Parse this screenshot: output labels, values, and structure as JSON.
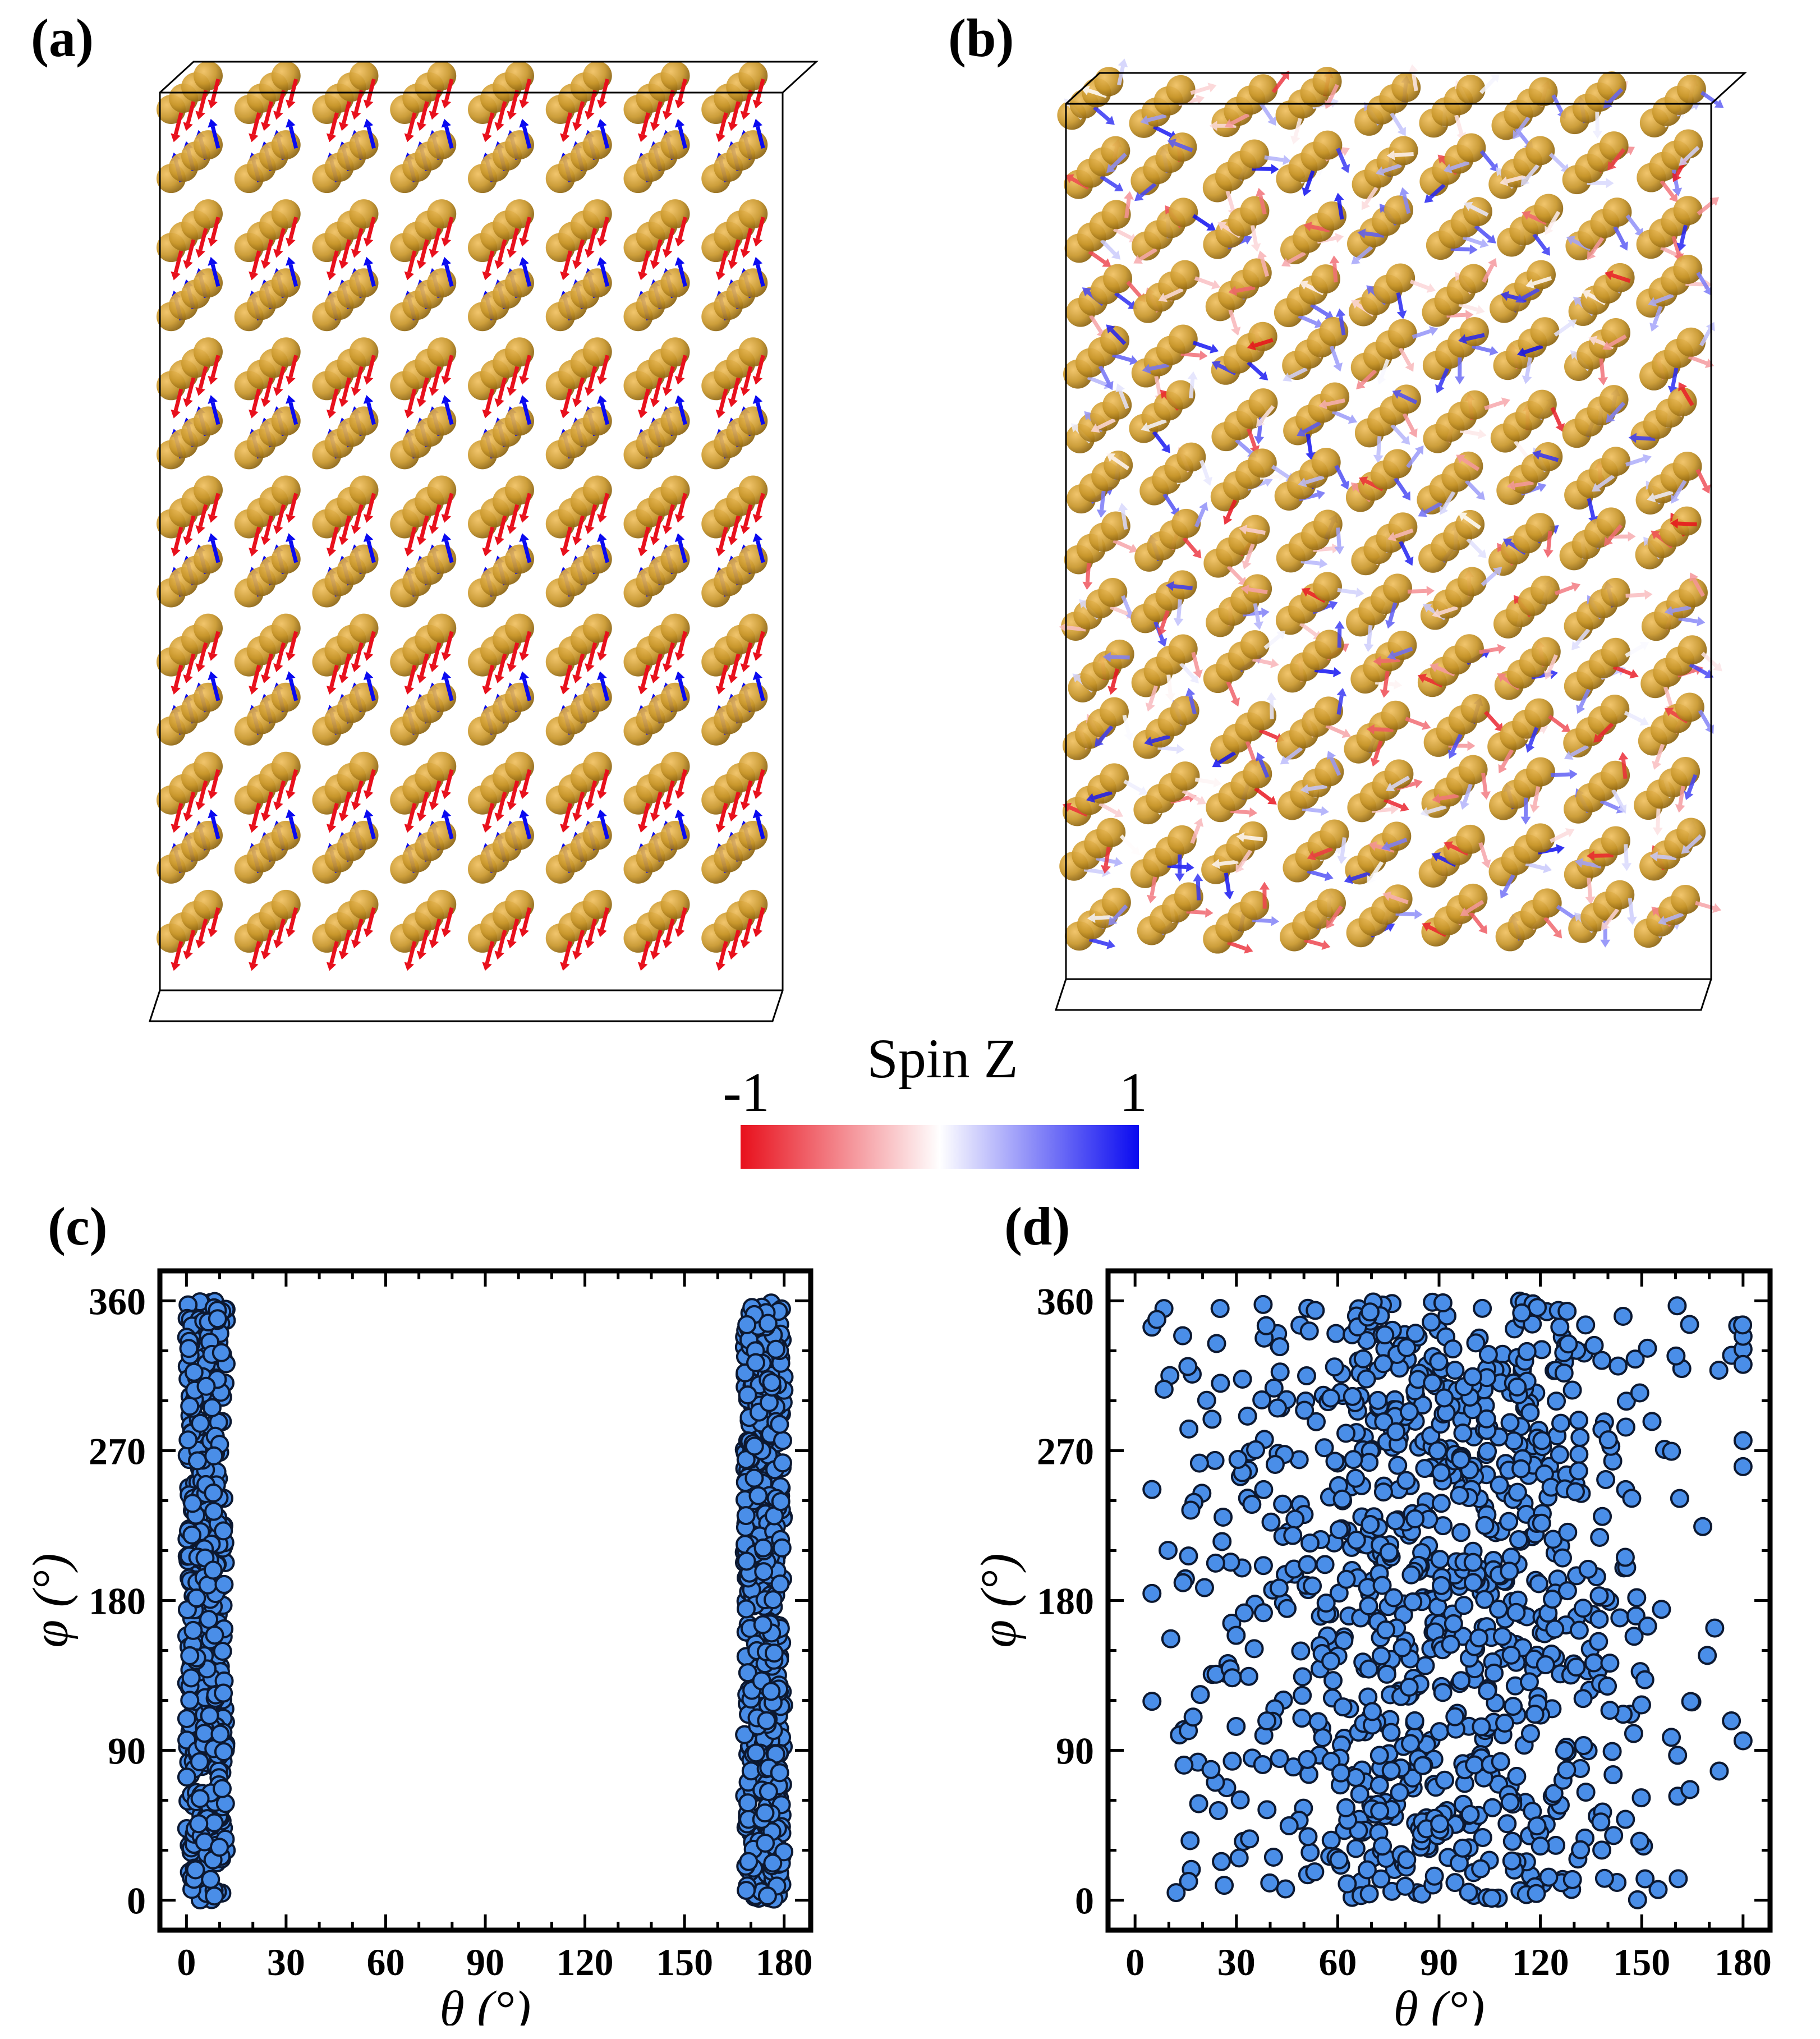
{
  "panels": {
    "a": "(a)",
    "b": "(b)",
    "c": "(c)",
    "d": "(d)"
  },
  "colorbar": {
    "title": "Spin Z",
    "min_label": "-1",
    "max_label": "1",
    "colors": [
      "#e8101c",
      "#ffffff",
      "#0a0af0"
    ]
  },
  "atom_color": "#c8962a",
  "chart_data": [
    {
      "panel": "c",
      "type": "scatter",
      "xlabel": "θ (°)",
      "ylabel": "φ (°)",
      "xlim": [
        -8,
        188
      ],
      "ylim": [
        -18,
        378
      ],
      "xticks": [
        0,
        30,
        60,
        90,
        120,
        150,
        180
      ],
      "yticks": [
        0,
        90,
        180,
        270,
        360
      ],
      "marker_color": "#4a8ee8",
      "clusters": [
        {
          "theta_range": [
            0,
            12
          ],
          "phi_range": [
            0,
            360
          ],
          "count": 480
        },
        {
          "theta_range": [
            168,
            180
          ],
          "phi_range": [
            0,
            360
          ],
          "count": 480
        }
      ]
    },
    {
      "panel": "d",
      "type": "scatter",
      "xlabel": "θ (°)",
      "ylabel": "φ (°)",
      "xlim": [
        -8,
        188
      ],
      "ylim": [
        -18,
        378
      ],
      "xticks": [
        0,
        30,
        60,
        90,
        120,
        150,
        180
      ],
      "yticks": [
        0,
        90,
        180,
        270,
        360
      ],
      "marker_color": "#4a8ee8",
      "distribution": {
        "theta_center": 90,
        "theta_spread": 36,
        "theta_range": [
          5,
          180
        ],
        "phi_range": [
          0,
          360
        ],
        "count": 1000
      }
    }
  ]
}
